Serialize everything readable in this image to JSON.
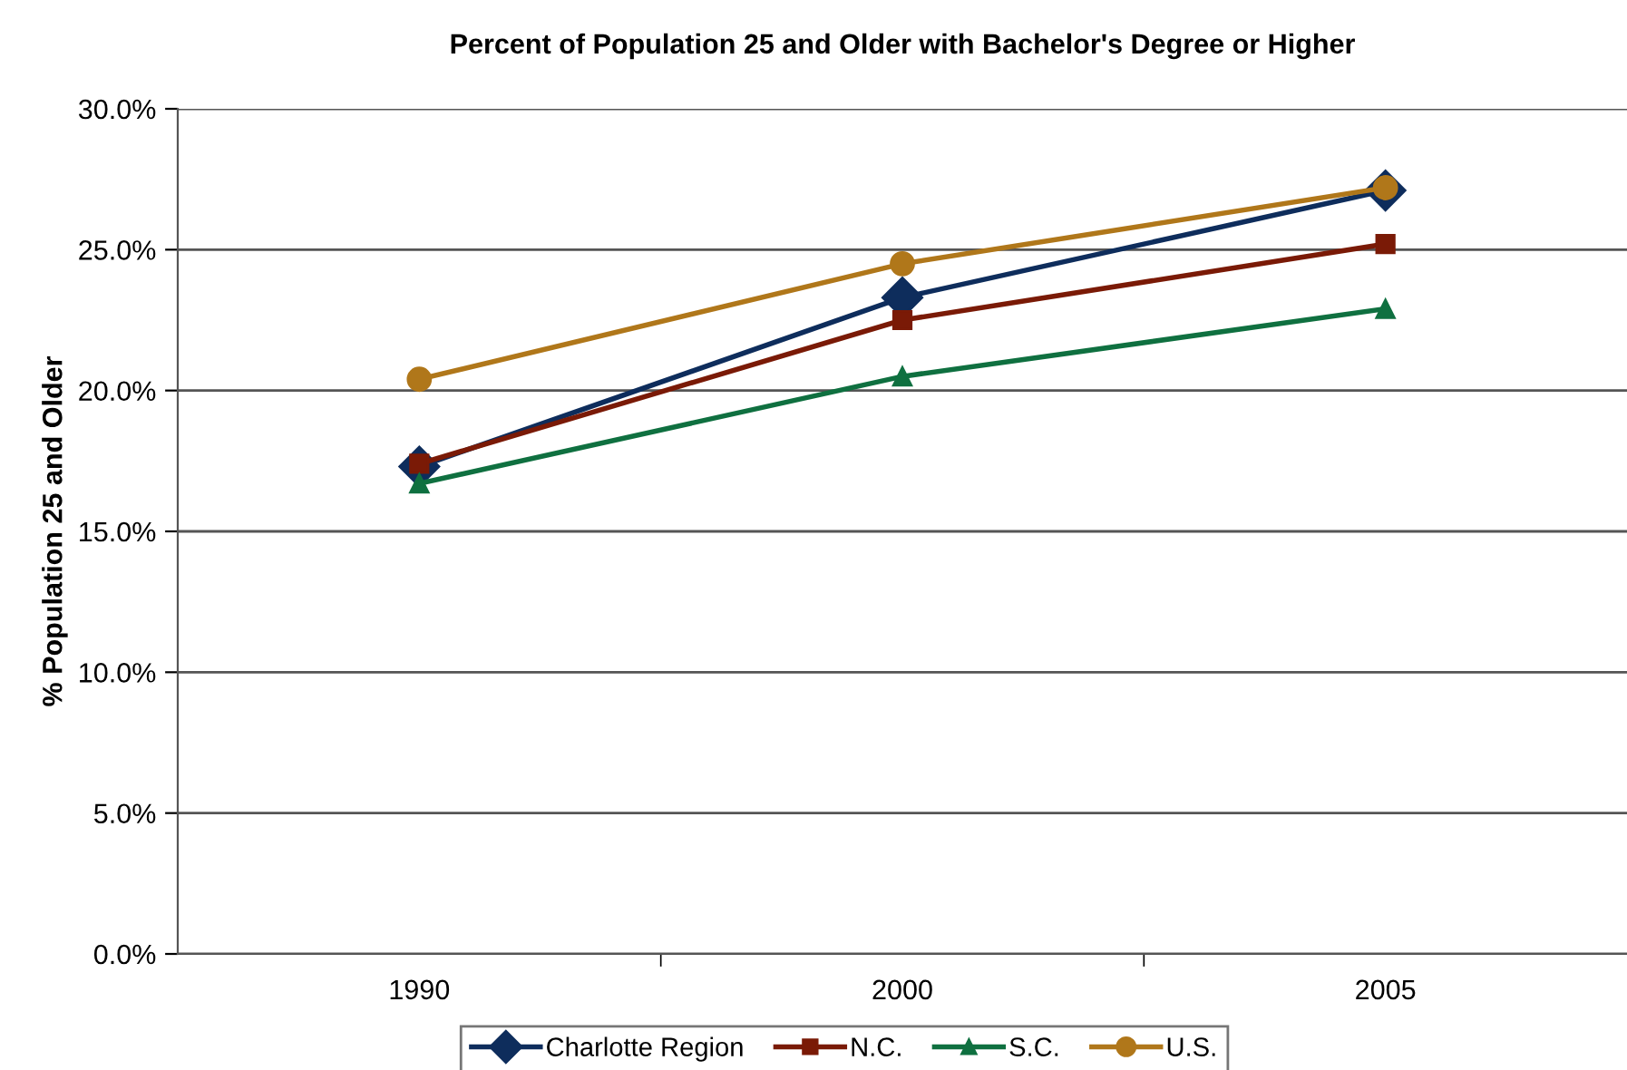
{
  "chart_data": {
    "type": "line",
    "title": "Percent of Population 25 and Older with Bachelor's Degree or Higher",
    "ylabel": "% Population 25 and Older",
    "categories": [
      "1990",
      "2000",
      "2005"
    ],
    "series": [
      {
        "name": "Charlotte Region",
        "color": "#0e2d5c",
        "marker": "diamond",
        "values": [
          17.3,
          23.3,
          27.1
        ]
      },
      {
        "name": "N.C.",
        "color": "#7a1a06",
        "marker": "square",
        "values": [
          17.4,
          22.5,
          25.2
        ]
      },
      {
        "name": "S.C.",
        "color": "#0f7040",
        "marker": "triangle",
        "values": [
          16.7,
          20.5,
          22.9
        ]
      },
      {
        "name": "U.S.",
        "color": "#b0771a",
        "marker": "circle",
        "values": [
          20.4,
          24.5,
          27.2
        ]
      }
    ],
    "ylim": [
      0,
      30
    ],
    "yticks": [
      {
        "value": 0,
        "label": "0.0%"
      },
      {
        "value": 5,
        "label": "5.0%"
      },
      {
        "value": 10,
        "label": "10.0%"
      },
      {
        "value": 15,
        "label": "15.0%"
      },
      {
        "value": 20,
        "label": "20.0%"
      },
      {
        "value": 25,
        "label": "25.0%"
      },
      {
        "value": 30,
        "label": "30.0%"
      }
    ],
    "grid": "y",
    "legend": "bottom"
  }
}
